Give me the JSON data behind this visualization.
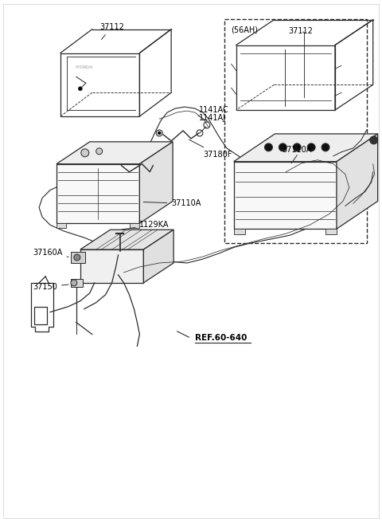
{
  "bg_color": "#ffffff",
  "labels": {
    "37112_left": "37112",
    "37112_right": "37112",
    "56AH": "(56AH)",
    "1141AC": "1141AC",
    "1141AJ": "1141AJ",
    "37180F": "37180F",
    "37110A_left": "37110A",
    "37110A_right": "37110A",
    "37160A": "37160A",
    "1129KA": "1129KA",
    "37150": "37150",
    "REF60640": "REF.60-640"
  },
  "line_color": "#2a2a2a",
  "dashed_box_color": "#2a2a2a",
  "label_color": "#000000",
  "font_size": 7.0
}
